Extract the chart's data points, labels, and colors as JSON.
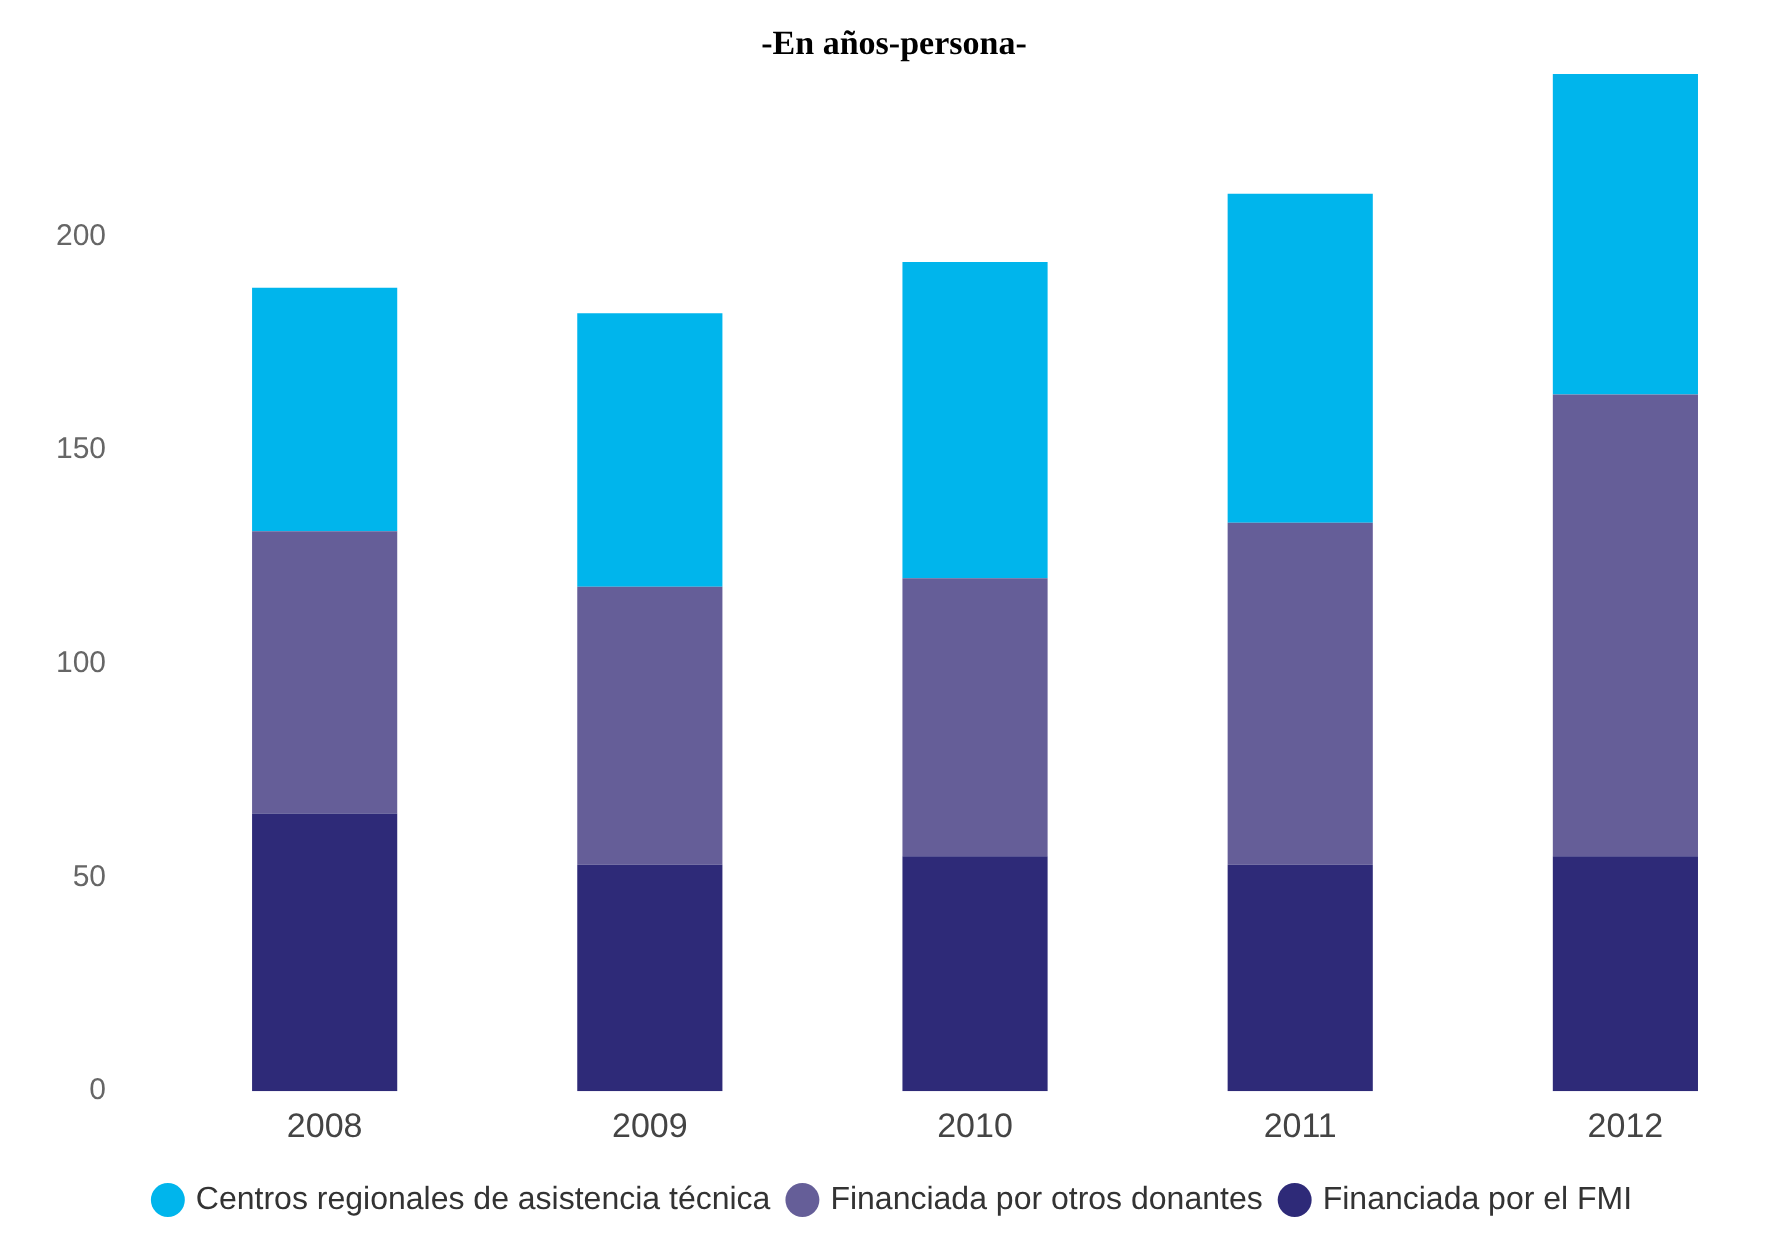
{
  "chart_data": {
    "type": "bar",
    "title": "-En años-persona-",
    "stacked": true,
    "categories": [
      "2008",
      "2009",
      "2010",
      "2011",
      "2012"
    ],
    "series": [
      {
        "name": "Financiada por el FMI",
        "color": "#2e2a78",
        "values": [
          65,
          53,
          55,
          53,
          55
        ]
      },
      {
        "name": "Financiada por otros donantes",
        "color": "#655e98",
        "values": [
          66,
          65,
          65,
          80,
          108
        ]
      },
      {
        "name": "Centros regionales de asistencia técnica",
        "color": "#00b5ec",
        "values": [
          57,
          64,
          74,
          77,
          75
        ]
      }
    ],
    "ylim": [
      0,
      238
    ],
    "yticks": [
      0,
      50,
      100,
      150,
      200
    ],
    "grid": false,
    "legend": "bottom"
  }
}
